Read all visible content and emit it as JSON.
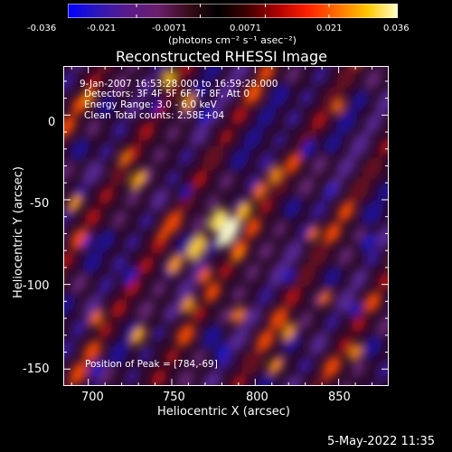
{
  "chart_data": {
    "type": "heatmap",
    "title": "Reconstructed RHESSI Image",
    "xlabel": "Heliocentric X (arcsec)",
    "ylabel": "Heliocentric Y (arcsec)",
    "xlim": [
      685,
      880
    ],
    "ylim": [
      -160,
      29
    ],
    "x_ticks": [
      700,
      750,
      800,
      850
    ],
    "y_ticks": [
      0,
      -50,
      -100,
      -150
    ],
    "colorbar": {
      "range": [
        -0.036,
        0.036
      ],
      "ticks": [
        "-0.036",
        "-0.021",
        "-0.0071",
        "0.0071",
        "0.021",
        "0.036"
      ],
      "unit_label": "(photons cm⁻² s⁻¹ asec⁻²)",
      "colors": [
        "#0000ff",
        "#2d18b8",
        "#5a1a8a",
        "#6a1e6c",
        "#3a0d1a",
        "#000000",
        "#400000",
        "#b00000",
        "#ff2000",
        "#ff7000",
        "#ffc800",
        "#ffffc8"
      ]
    },
    "peak": [
      784,
      -69
    ],
    "annotations": {
      "time": "9-Jan-2007 16:53:28.000 to 16:59:28.000",
      "detectors": "Detectors: 3F 4F 5F 6F 7F 8F, Att 0",
      "energy": "Energy Range: 3.0 - 6.0 keV",
      "clean": "Clean    Total counts: 2.58E+04",
      "peak": "Position of Peak = [784,-69]"
    }
  },
  "footer": {
    "date": "5-May-2022 11:35"
  }
}
